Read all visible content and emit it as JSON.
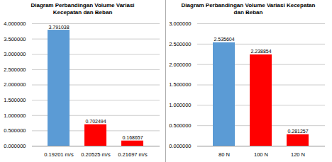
{
  "chart_data": [
    {
      "type": "bar",
      "title": "Diagram Perbandingan Volume Variasi\nKecepatan dan Beban",
      "categories": [
        "0.19201 m/s",
        "0.20525 m/s",
        "0.21697 m/s"
      ],
      "values": [
        3.791038,
        0.702494,
        0.168657
      ],
      "colors": [
        "#5b9bd5",
        "#ff0000",
        "#ff0000"
      ],
      "ylim": [
        0,
        4.0
      ],
      "yticks": [
        {
          "value": 0.0,
          "label": "0.000000"
        },
        {
          "value": 0.5,
          "label": "0.500000"
        },
        {
          "value": 1.0,
          "label": "1.000000"
        },
        {
          "value": 1.5,
          "label": "1.500000"
        },
        {
          "value": 2.0,
          "label": "2.000000"
        },
        {
          "value": 2.5,
          "label": "2.500000"
        },
        {
          "value": 3.0,
          "label": "3.000000"
        },
        {
          "value": 3.5,
          "label": "3.500000"
        },
        {
          "value": 4.0,
          "label": "4.000000"
        }
      ],
      "grid": true,
      "data_labels": true
    },
    {
      "type": "bar",
      "title": "Diagram Perbandingan Volume Variasi Kecepatan\ndan Beban",
      "categories": [
        "80 N",
        "100 N",
        "120 N"
      ],
      "values": [
        2.535604,
        2.238854,
        0.281257
      ],
      "colors": [
        "#5b9bd5",
        "#ff0000",
        "#ff0000"
      ],
      "ylim": [
        0,
        3.0
      ],
      "yticks": [
        {
          "value": 0.0,
          "label": "0.000000"
        },
        {
          "value": 0.5,
          "label": "0.500000"
        },
        {
          "value": 1.0,
          "label": "1.000000"
        },
        {
          "value": 1.5,
          "label": "1.500000"
        },
        {
          "value": 2.0,
          "label": "2.000000"
        },
        {
          "value": 2.5,
          "label": "2.500000"
        },
        {
          "value": 3.0,
          "label": "3.000000"
        }
      ],
      "grid": true,
      "data_labels": true
    }
  ]
}
